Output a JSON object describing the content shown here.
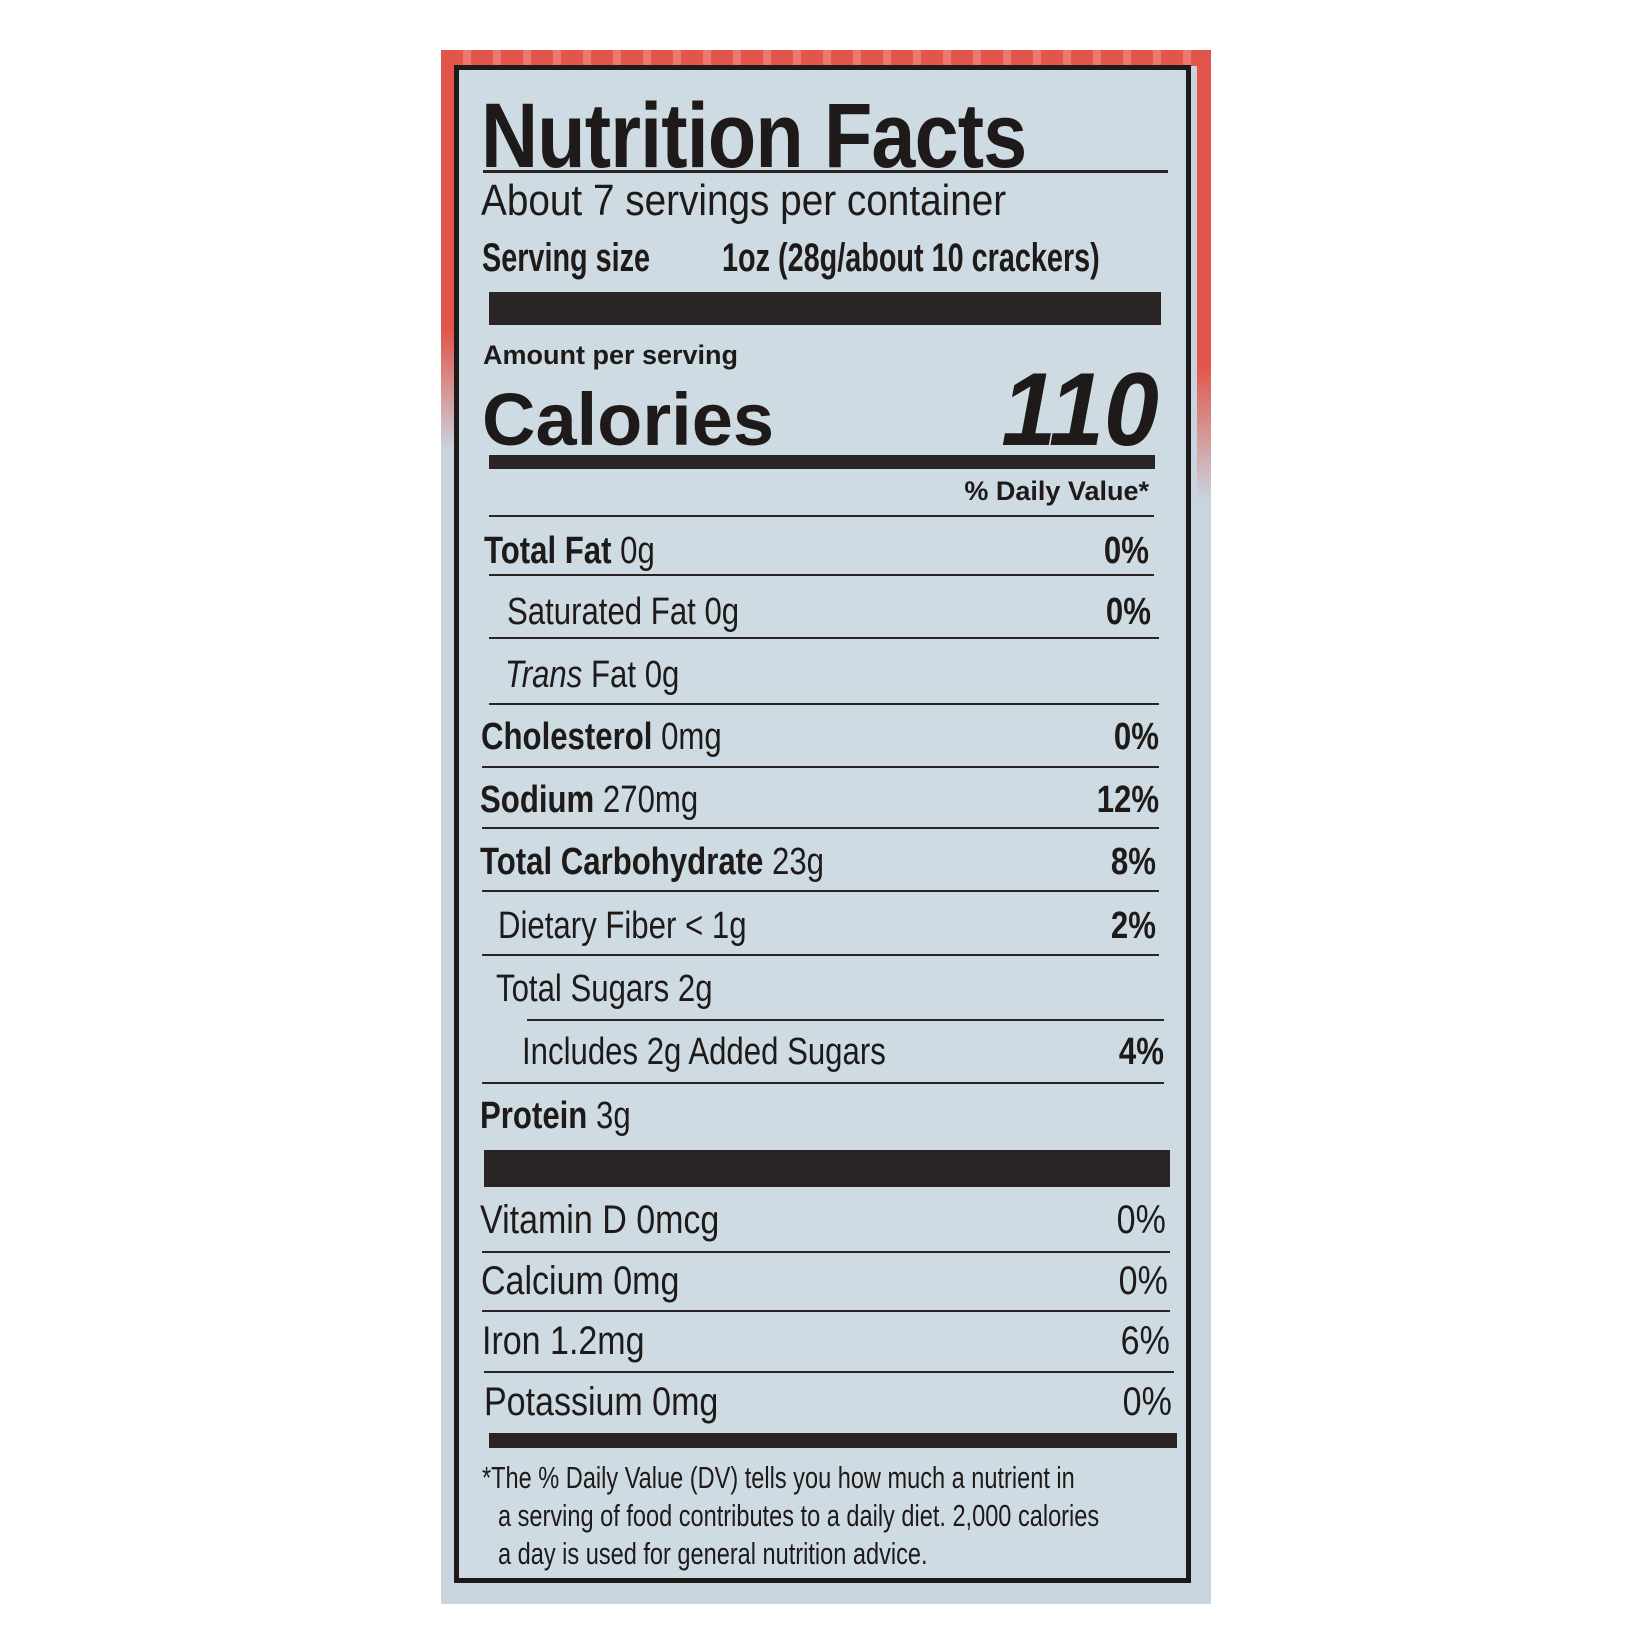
{
  "title": "Nutrition Facts",
  "servings_per_container": "About 7 servings per container",
  "serving_size": {
    "label": "Serving size",
    "value": "1oz (28g/about 10 crackers)"
  },
  "amount_per_serving": "Amount per serving",
  "calories": {
    "label": "Calories",
    "value": "110"
  },
  "daily_value_header": "% Daily Value*",
  "nutrients": [
    {
      "name": "Total Fat",
      "amount": "0g",
      "dv": "0%"
    },
    {
      "name": "Saturated Fat",
      "amount": "0g",
      "dv": "0%"
    },
    {
      "name": "Trans",
      "name_rest": "Fat 0g",
      "dv": ""
    },
    {
      "name": "Cholesterol",
      "amount": "0mg",
      "dv": "0%"
    },
    {
      "name": "Sodium",
      "amount": "270mg",
      "dv": "12%"
    },
    {
      "name": "Total Carbohydrate",
      "amount": "23g",
      "dv": "8%"
    },
    {
      "name": "Dietary Fiber",
      "amount": "< 1g",
      "dv": "2%"
    },
    {
      "name": "Total Sugars",
      "amount": "2g",
      "dv": ""
    },
    {
      "name": "Includes 2g Added Sugars",
      "dv": "4%"
    },
    {
      "name": "Protein",
      "amount": "3g",
      "dv": ""
    }
  ],
  "vitamins": [
    {
      "label": "Vitamin D 0mcg",
      "dv": "0%"
    },
    {
      "label": "Calcium 0mg",
      "dv": "0%"
    },
    {
      "label": "Iron 1.2mg",
      "dv": "6%"
    },
    {
      "label": "Potassium 0mg",
      "dv": "0%"
    }
  ],
  "footnote": [
    "*The % Daily Value (DV) tells you how much a nutrient in",
    "a serving of food contributes to a daily diet. 2,000 calories",
    "a day is used for general nutrition advice."
  ],
  "colors": {
    "package_red": "#e2554b",
    "label_background": "#cfdbe3",
    "ink": "#1e1a1a"
  }
}
